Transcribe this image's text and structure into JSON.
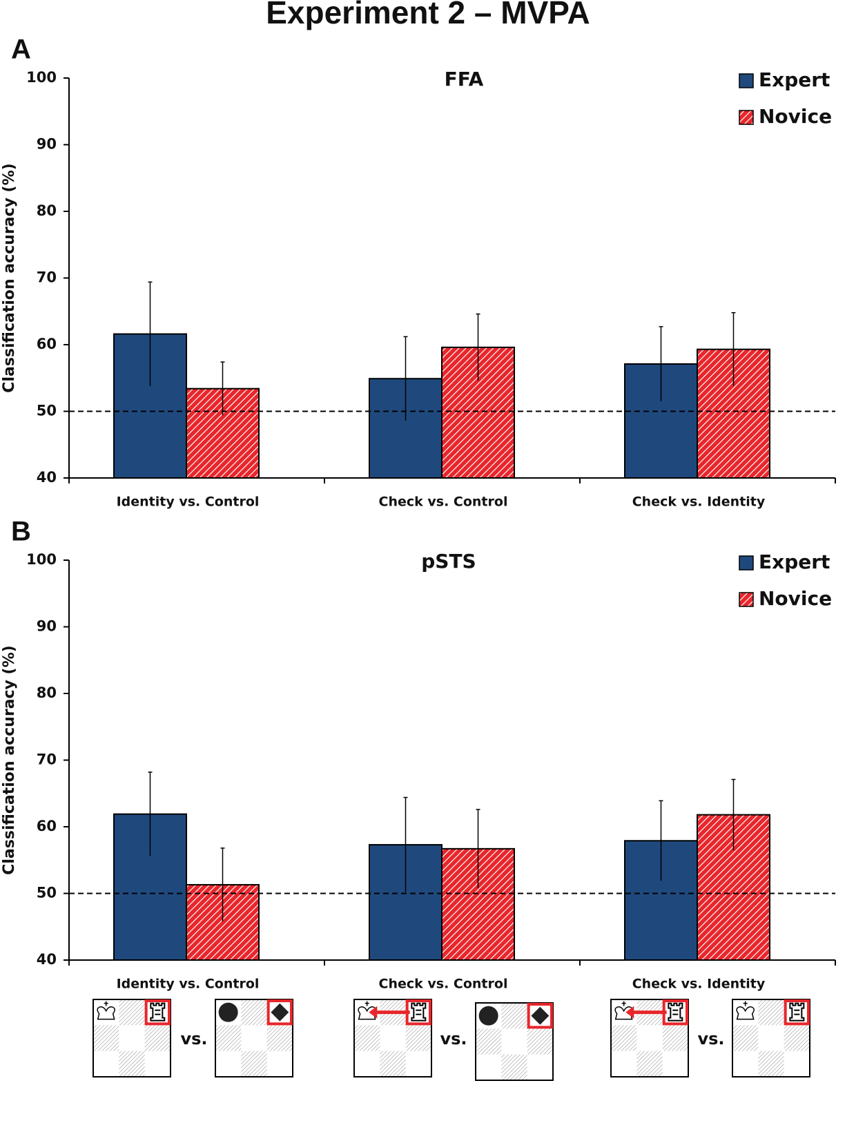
{
  "title": "Experiment 2 – MVPA",
  "chart_data": [
    {
      "type": "bar",
      "panel": "A",
      "title": "FFA",
      "y_label": "Classification accuracy (%)",
      "categories": [
        "Identity vs. Control",
        "Check vs. Control",
        "Check vs. Identity"
      ],
      "series": [
        {
          "name": "Expert",
          "color": "#1f497d",
          "values": [
            61.6,
            54.9,
            57.1
          ],
          "errors": [
            7.8,
            6.3,
            5.6
          ]
        },
        {
          "name": "Novice",
          "color": "#e8262b",
          "pattern": "hatch",
          "values": [
            53.4,
            59.6,
            59.3
          ],
          "errors": [
            4.0,
            5.0,
            5.5
          ]
        }
      ],
      "ylim": [
        40,
        100
      ],
      "yticks": [
        40,
        50,
        60,
        70,
        80,
        90,
        100
      ],
      "reference_line": 50,
      "legend": "upper right"
    },
    {
      "type": "bar",
      "panel": "B",
      "title": "pSTS",
      "y_label": "Classification accuracy (%)",
      "categories": [
        "Identity vs. Control",
        "Check vs. Control",
        "Check vs. Identity"
      ],
      "series": [
        {
          "name": "Expert",
          "color": "#1f497d",
          "values": [
            61.9,
            57.3,
            57.9
          ],
          "errors": [
            6.3,
            7.1,
            6.0
          ]
        },
        {
          "name": "Novice",
          "color": "#e8262b",
          "pattern": "hatch",
          "values": [
            51.3,
            56.7,
            61.8
          ],
          "errors": [
            5.5,
            5.9,
            5.3
          ]
        }
      ],
      "ylim": [
        40,
        100
      ],
      "yticks": [
        40,
        50,
        60,
        70,
        80,
        90,
        100
      ],
      "reference_line": 50,
      "legend": "upper right"
    }
  ],
  "comparisons": [
    {
      "separator": "vs."
    },
    {
      "separator": "vs."
    },
    {
      "separator": "vs."
    }
  ]
}
